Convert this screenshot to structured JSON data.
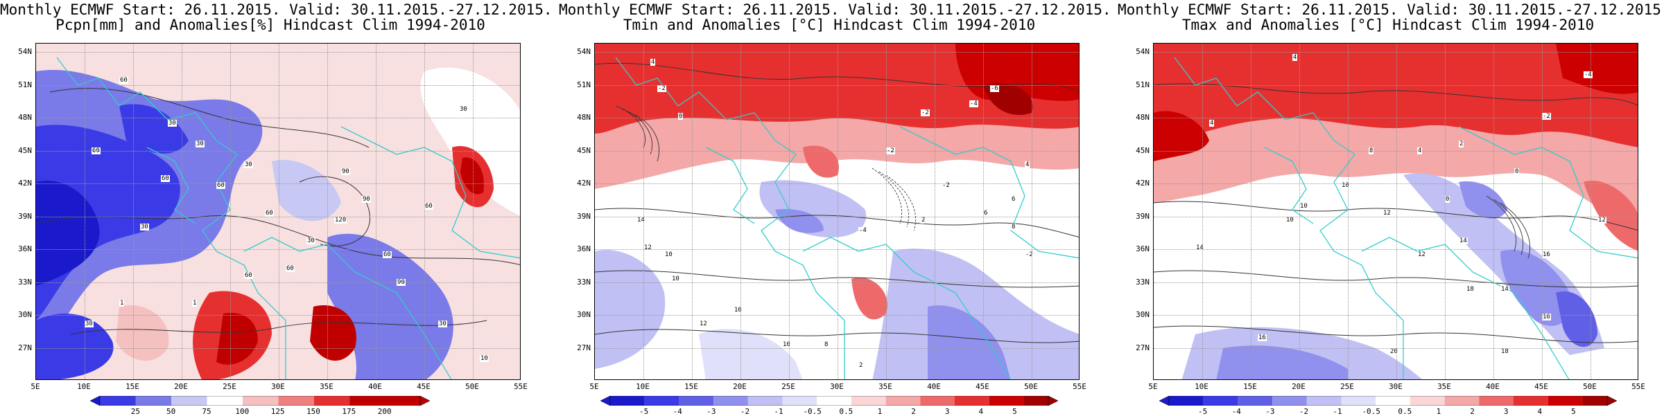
{
  "panels": [
    {
      "name": "precipitation",
      "title1": "Monthly ECMWF Start: 26.11.2015. Valid: 30.11.2015.-27.12.2015.",
      "title2": "Pcpn[mm] and Anomalies[%] Hindcast Clim 1994-2010",
      "colorbar": [
        "25",
        "50",
        "75",
        "100",
        "125",
        "150",
        "175",
        "200"
      ],
      "contour_labels": [
        "60",
        "30",
        "60",
        "60",
        "30",
        "60",
        "30",
        "30",
        "60",
        "60",
        "90",
        "90",
        "120",
        "30",
        "60",
        "90",
        "60",
        "30",
        "1",
        "30",
        "1",
        "60",
        "30",
        "10"
      ]
    },
    {
      "name": "tmin",
      "title1": "Monthly ECMWF Start: 26.11.2015. Valid: 30.11.2015.-27.12.2015.",
      "title2": "Tmin and Anomalies [°C] Hindcast Clim 1994-2010",
      "colorbar": [
        "-5",
        "-4",
        "-3",
        "-2",
        "-1",
        "-0.5",
        "0.5",
        "1",
        "2",
        "3",
        "4",
        "5"
      ],
      "contour_labels": [
        "4",
        "-2",
        "-6",
        "-4",
        "-2",
        "0",
        "-2",
        "-2",
        "2",
        "14",
        "12",
        "10",
        "-4",
        "4",
        "6",
        "8",
        "10",
        "16",
        "12",
        "10",
        "8",
        "2",
        "6",
        "-2"
      ]
    },
    {
      "name": "tmax",
      "title1": "Monthly ECMWF Start: 26.11.2015. Valid: 30.11.2015.-27.12.2015.",
      "title2": "Tmax and Anomalies [°C] Hindcast Clim 1994-2010",
      "colorbar": [
        "-5",
        "-4",
        "-3",
        "-2",
        "-1",
        "-0.5",
        "0.5",
        "1",
        "2",
        "3",
        "4",
        "5"
      ],
      "contour_labels": [
        "4",
        "-4",
        "-2",
        "4",
        "2",
        "0",
        "4",
        "8",
        "10",
        "12",
        "14",
        "10",
        "0",
        "10",
        "14",
        "16",
        "12",
        "18",
        "14",
        "16",
        "20",
        "18",
        "16",
        "12"
      ]
    }
  ],
  "lat_labels": [
    "54N",
    "51N",
    "48N",
    "45N",
    "42N",
    "39N",
    "36N",
    "33N",
    "30N",
    "27N"
  ],
  "lon_labels": [
    "5E",
    "10E",
    "15E",
    "20E",
    "25E",
    "30E",
    "35E",
    "40E",
    "45E",
    "50E",
    "55E"
  ],
  "colors": {
    "precip_scale": [
      "#1a1acc",
      "#3a3ae6",
      "#7a7ae8",
      "#c8c8f4",
      "#ffffff",
      "#f4c0c0",
      "#ee8080",
      "#e63030",
      "#c00000"
    ],
    "temp_scale": [
      "#1a1acc",
      "#3a3ae6",
      "#6060e6",
      "#9090ee",
      "#c0c0f4",
      "#e0e0fa",
      "#ffffff",
      "#fbd6d6",
      "#f4a8a8",
      "#ee6a6a",
      "#e63030",
      "#cc0000",
      "#a00000"
    ],
    "coast": "#33cccc"
  }
}
